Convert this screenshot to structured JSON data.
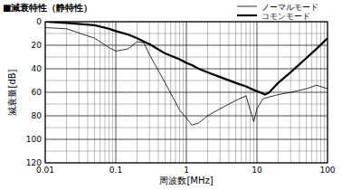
{
  "chart_data": {
    "type": "line",
    "title": "■減衰特性（静特性）",
    "x_label": "周波数[MHz]",
    "y_label": "減衰量[dB]",
    "log": "x",
    "grid": true,
    "legend": "top-right",
    "x": [
      0.01,
      0.02,
      0.05,
      0.08,
      0.1,
      0.15,
      0.2,
      0.25,
      0.3,
      0.5,
      0.8,
      1,
      1.2,
      1.5,
      2,
      3,
      5,
      7,
      9,
      10,
      12,
      13,
      15,
      20,
      30,
      50,
      70,
      100
    ],
    "series": [
      {
        "name": "ノーマルモード",
        "color": "#000000",
        "line_style": "thin",
        "values": [
          5,
          6,
          14,
          22,
          25,
          23,
          17,
          18,
          28,
          52,
          75,
          82,
          88,
          86,
          80,
          74,
          67,
          63,
          85,
          74,
          66,
          65,
          64,
          62,
          60,
          57,
          54,
          57
        ]
      },
      {
        "name": "コモンモード",
        "color": "#000000",
        "line_style": "thick",
        "values": [
          0,
          1,
          3,
          6,
          8,
          11,
          14,
          17,
          19,
          27,
          32,
          35,
          37,
          40,
          43,
          47,
          52,
          55,
          58,
          59,
          61,
          62,
          60,
          52,
          43,
          31,
          23,
          14
        ]
      }
    ],
    "xlim": [
      0.01,
      100
    ],
    "xticks": [
      0.01,
      0.1,
      1,
      10,
      100
    ],
    "ylim": [
      0,
      120
    ],
    "yticks": [
      0,
      20,
      40,
      60,
      80,
      100,
      120
    ]
  }
}
